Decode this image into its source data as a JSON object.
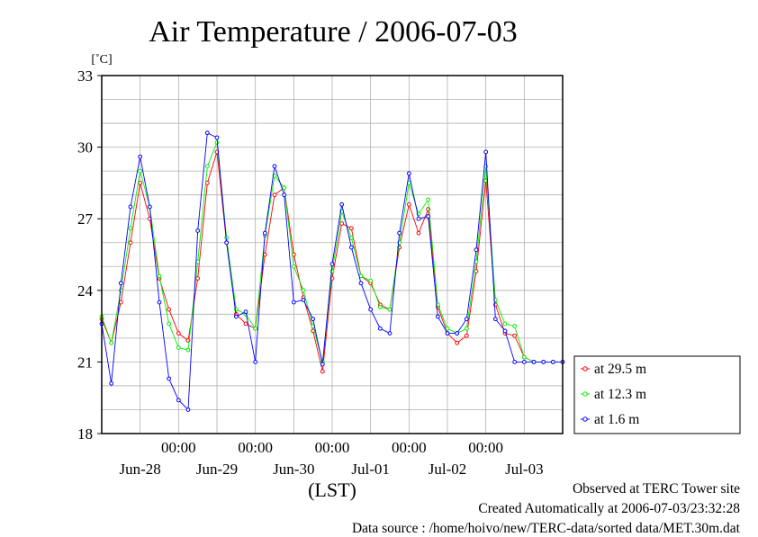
{
  "chart_data": {
    "type": "line",
    "title": "Air Temperature / 2006-07-03",
    "ylabel": "[˚C]",
    "xlabel": "(LST)",
    "ylim": [
      18,
      33
    ],
    "yticks": [
      18,
      21,
      24,
      27,
      30,
      33
    ],
    "xlim_hours": [
      0,
      144
    ],
    "x_start": "2006-06-27 00:00 LST",
    "x_end": "2006-07-03 00:00 LST",
    "time_tick_label": "00:00",
    "date_labels": [
      "Jun-28",
      "Jun-29",
      "Jun-30",
      "Jul-01",
      "Jul-02",
      "Jul-03"
    ],
    "grid": true,
    "legend_position": "right",
    "series": [
      {
        "name": "at 29.5 m",
        "color": "#ff0000",
        "x": [
          0,
          3,
          6,
          9,
          12,
          15,
          18,
          21,
          24,
          27,
          30,
          33,
          36,
          39,
          42,
          45,
          48,
          51,
          54,
          57,
          60,
          63,
          66,
          69,
          72,
          75,
          78,
          81,
          84,
          87,
          90,
          93,
          96,
          99,
          102,
          105,
          108,
          111,
          114,
          117,
          120,
          123,
          126,
          129,
          132,
          135,
          138,
          141,
          144
        ],
        "y": [
          22.8,
          21.8,
          23.5,
          26.0,
          28.5,
          27.0,
          24.5,
          23.2,
          22.2,
          21.9,
          24.5,
          28.5,
          29.8,
          26.0,
          23.0,
          22.6,
          22.4,
          25.5,
          28.0,
          28.3,
          25.5,
          23.7,
          22.3,
          20.6,
          24.5,
          26.8,
          26.6,
          24.6,
          24.3,
          23.4,
          23.2,
          25.8,
          27.6,
          26.4,
          27.4,
          23.3,
          22.2,
          21.8,
          22.1,
          24.8,
          28.6,
          23.4,
          22.2,
          22.1,
          21.2,
          21.0,
          21.0,
          21.0,
          21.0
        ]
      },
      {
        "name": "at 12.3 m",
        "color": "#00ee00",
        "x": [
          0,
          3,
          6,
          9,
          12,
          15,
          18,
          21,
          24,
          27,
          30,
          33,
          36,
          39,
          42,
          45,
          48,
          51,
          54,
          57,
          60,
          63,
          66,
          69,
          72,
          75,
          78,
          81,
          84,
          87,
          90,
          93,
          96,
          99,
          102,
          105,
          108,
          111,
          114,
          117,
          120,
          123,
          126,
          129,
          132,
          135,
          138,
          141,
          144
        ],
        "y": [
          22.9,
          21.8,
          24.0,
          26.6,
          29.0,
          27.5,
          24.6,
          22.6,
          21.6,
          21.5,
          25.2,
          29.2,
          30.2,
          26.2,
          23.2,
          23.0,
          22.4,
          26.3,
          28.8,
          28.3,
          25.0,
          24.0,
          22.5,
          21.0,
          24.8,
          27.3,
          26.2,
          24.6,
          24.4,
          23.3,
          23.2,
          26.0,
          28.5,
          27.2,
          27.8,
          23.4,
          22.4,
          22.2,
          22.4,
          25.2,
          29.2,
          23.6,
          22.6,
          22.5,
          21.2,
          21.0,
          21.0,
          21.0,
          21.0
        ]
      },
      {
        "name": "at 1.6 m",
        "color": "#0000ff",
        "x": [
          0,
          3,
          6,
          9,
          12,
          15,
          18,
          21,
          24,
          27,
          30,
          33,
          36,
          39,
          42,
          45,
          48,
          51,
          54,
          57,
          60,
          63,
          66,
          69,
          72,
          75,
          78,
          81,
          84,
          87,
          90,
          93,
          96,
          99,
          102,
          105,
          108,
          111,
          114,
          117,
          120,
          123,
          126,
          129,
          132,
          135,
          138,
          141,
          144
        ],
        "y": [
          22.6,
          20.1,
          24.3,
          27.5,
          29.6,
          27.5,
          23.5,
          20.3,
          19.4,
          19.0,
          26.5,
          30.6,
          30.4,
          26.0,
          22.9,
          23.1,
          21.0,
          26.4,
          29.2,
          28.0,
          23.5,
          23.6,
          22.8,
          20.9,
          25.1,
          27.6,
          25.8,
          24.3,
          23.2,
          22.4,
          22.2,
          26.4,
          28.9,
          27.0,
          27.1,
          22.9,
          22.2,
          22.2,
          22.8,
          25.7,
          29.8,
          22.8,
          22.3,
          21.0,
          21.0,
          21.0,
          21.0,
          21.0,
          21.0
        ]
      }
    ]
  },
  "footer": {
    "line1": "Observed at TERC Tower site",
    "line2": "Created Automatically at 2006-07-03/23:32:28",
    "line3": "Data source : /home/hoivo/new/TERC-data/sorted  data/MET.30m.dat"
  }
}
